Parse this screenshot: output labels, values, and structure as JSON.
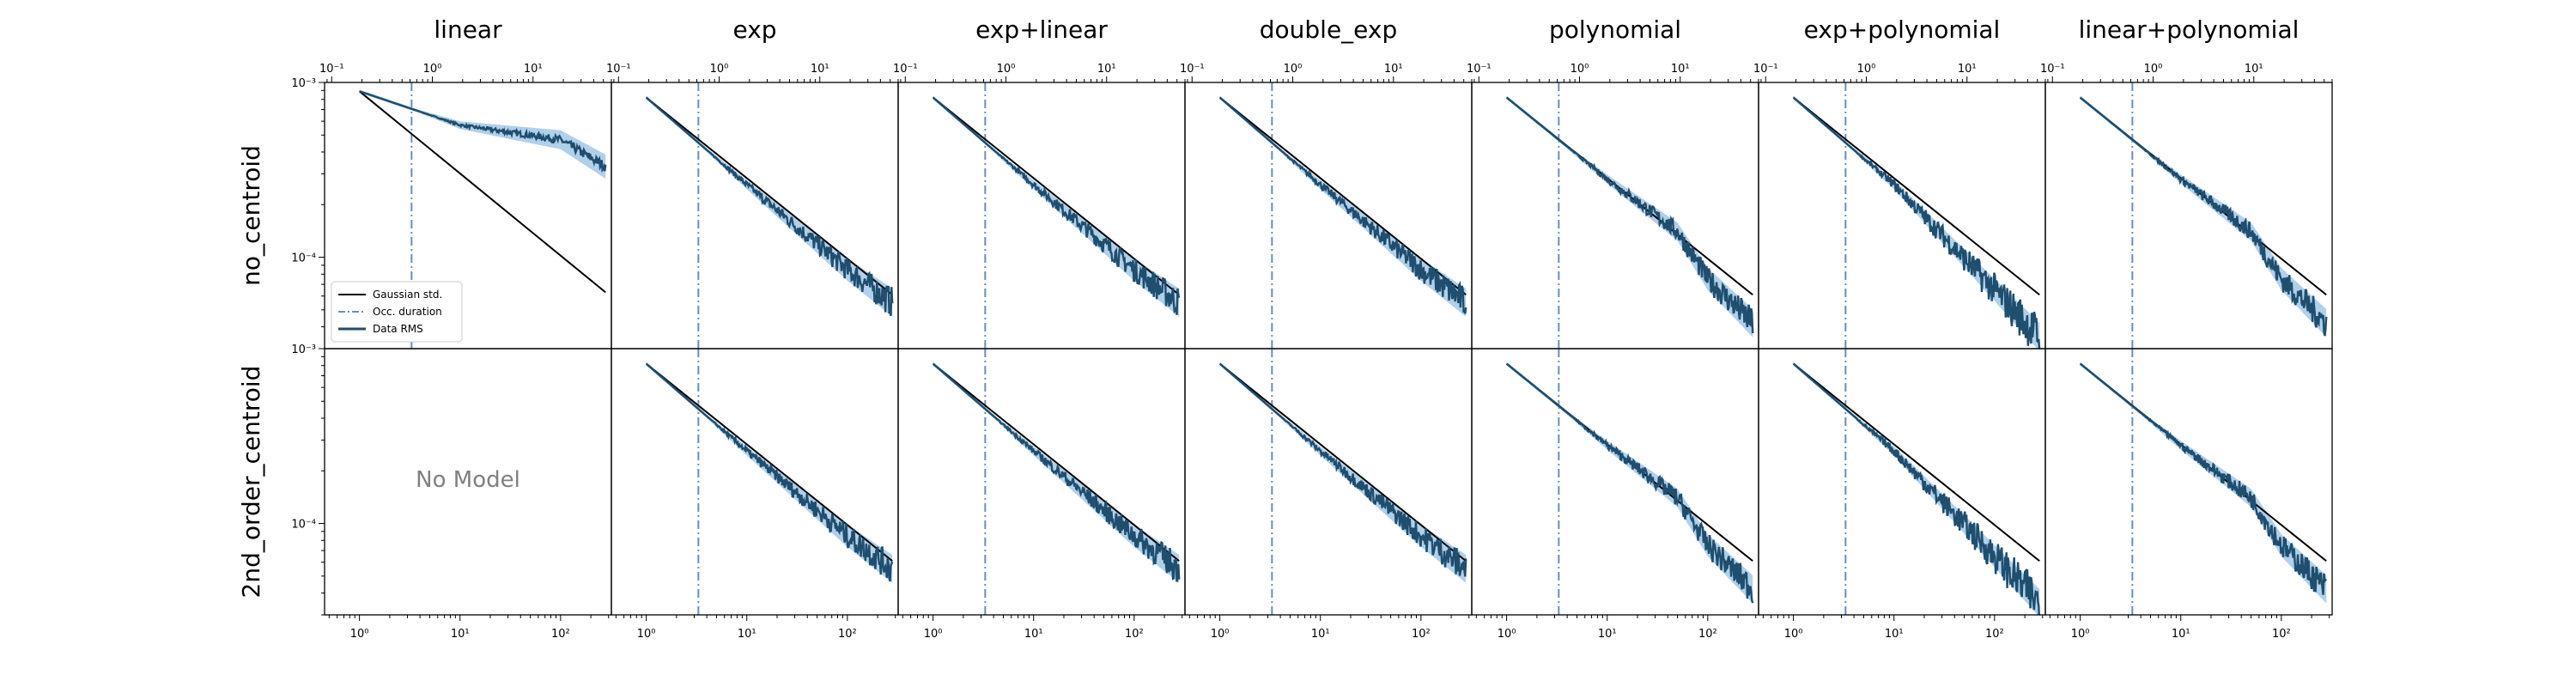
{
  "figure": {
    "columns": [
      "linear",
      "exp",
      "exp+linear",
      "double_exp",
      "polynomial",
      "exp+polynomial",
      "linear+polynomial"
    ],
    "rows": [
      "no_centroid",
      "2nd_order_centroid"
    ],
    "no_model_label": "No Model",
    "legend": {
      "gaussian": "Gaussian std.",
      "occ": "Occ. duration",
      "data": "Data RMS"
    },
    "colors": {
      "data_line": "#1f4e6e",
      "band": "#a9cbe8",
      "gaussian_line": "#000000",
      "occ_line": "#6b8fb8",
      "no_model_text": "#808080",
      "axis": "#000000"
    }
  },
  "chart_data": {
    "type": "line",
    "bottom_axis": {
      "scale": "log",
      "xlim": [
        0.45,
        320
      ],
      "ticks": [
        1,
        10,
        100
      ],
      "tick_labels": [
        "10⁰",
        "10¹",
        "10²"
      ]
    },
    "top_axis": {
      "scale": "log",
      "xlim": [
        0.085,
        60
      ],
      "ticks": [
        0.1,
        1,
        10
      ],
      "tick_labels": [
        "10⁻¹",
        "10⁰",
        "10¹"
      ]
    },
    "y_axis": {
      "scale": "log",
      "ylim": [
        3e-05,
        0.001
      ],
      "ticks": [
        0.0001,
        0.001
      ],
      "tick_labels": [
        "10⁻⁴",
        "10⁻³"
      ]
    },
    "occultation_duration_x": 3.3,
    "x_range": [
      1,
      280
    ],
    "gaussian_std": {
      "standard": {
        "y_at_1": 0.00082,
        "y_at_280": 6.1e-05
      },
      "linear_no_centroid": {
        "y_at_1": 0.00089,
        "y_at_280": 6.3e-05
      }
    },
    "data_rms": {
      "linear_no_centroid": {
        "y_at_1": 0.00089,
        "y_at_10": 0.00057,
        "y_at_100": 0.00047,
        "y_at_280": 0.00033,
        "band_at_280": [
          0.00024,
          0.0005
        ]
      },
      "standard": {
        "y_at_1": 0.00082,
        "y_at_10": 0.00026,
        "y_at_100": 8.5e-05,
        "y_at_280": 5.5e-05
      },
      "polynomial_family": {
        "y_at_1": 0.00082,
        "y_at_10": 0.00028,
        "y_at_50": 0.00014,
        "y_at_100": 7.5e-05,
        "y_at_280": 4.2e-05
      },
      "exp_polynomial_dip": {
        "y_at_100": 6.5e-05,
        "y_at_280": 3.5e-05
      }
    }
  }
}
